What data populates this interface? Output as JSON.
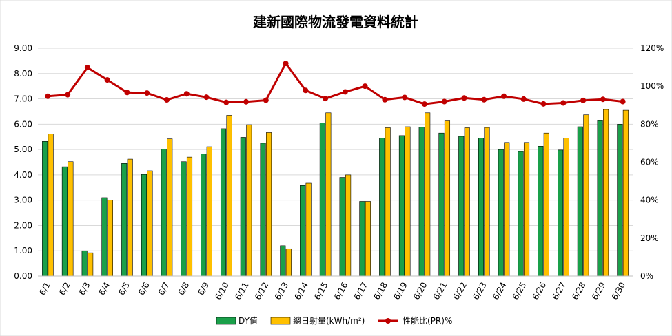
{
  "chart_data": {
    "type": "bar",
    "title": "建新國際物流發電資料統計",
    "categories": [
      "6/1",
      "6/2",
      "6/3",
      "6/4",
      "6/5",
      "6/6",
      "6/7",
      "6/8",
      "6/9",
      "6/10",
      "6/11",
      "6/12",
      "6/13",
      "6/14",
      "6/15",
      "6/16",
      "6/17",
      "6/18",
      "6/19",
      "6/20",
      "6/21",
      "6/22",
      "6/23",
      "6/24",
      "6/25",
      "6/26",
      "6/27",
      "6/28",
      "6/29",
      "6/30"
    ],
    "y_left": {
      "ylim": [
        0,
        9
      ],
      "ticks": [
        "0.00",
        "1.00",
        "2.00",
        "3.00",
        "4.00",
        "5.00",
        "6.00",
        "7.00",
        "8.00",
        "9.00"
      ]
    },
    "y_right": {
      "ylim": [
        0,
        120
      ],
      "ticks": [
        "0%",
        "20%",
        "40%",
        "60%",
        "80%",
        "100%",
        "120%"
      ]
    },
    "series": [
      {
        "name": "DY值",
        "type": "bar",
        "axis": "left",
        "color": "#1aa04a",
        "values": [
          5.32,
          4.32,
          1.0,
          3.1,
          4.45,
          4.02,
          5.02,
          4.52,
          4.82,
          5.82,
          5.48,
          5.25,
          1.2,
          3.58,
          6.05,
          3.9,
          2.95,
          5.45,
          5.55,
          5.88,
          5.65,
          5.52,
          5.45,
          5.0,
          4.92,
          5.13,
          4.98,
          5.9,
          6.14,
          6.0
        ]
      },
      {
        "name": "總日射量(kWh/m²)",
        "type": "bar",
        "axis": "left",
        "color": "#ffc000",
        "values": [
          5.62,
          4.52,
          0.92,
          3.0,
          4.62,
          4.16,
          5.42,
          4.7,
          5.11,
          6.35,
          5.98,
          5.67,
          1.08,
          3.67,
          6.45,
          4.0,
          2.95,
          5.86,
          5.9,
          6.45,
          6.13,
          5.86,
          5.87,
          5.28,
          5.28,
          5.65,
          5.45,
          6.37,
          6.58,
          6.55
        ]
      },
      {
        "name": "性能比(PR)%",
        "type": "line",
        "axis": "right",
        "color": "#c00000",
        "values": [
          94.7,
          95.5,
          109.8,
          103.3,
          96.7,
          96.4,
          92.8,
          96.0,
          94.2,
          91.5,
          91.8,
          92.6,
          112.0,
          97.8,
          93.5,
          97.0,
          100.0,
          92.9,
          94.1,
          90.6,
          91.9,
          93.8,
          92.9,
          94.7,
          93.2,
          90.7,
          91.2,
          92.5,
          93.1,
          91.9
        ]
      }
    ],
    "legend_position": "bottom",
    "grid": true
  }
}
